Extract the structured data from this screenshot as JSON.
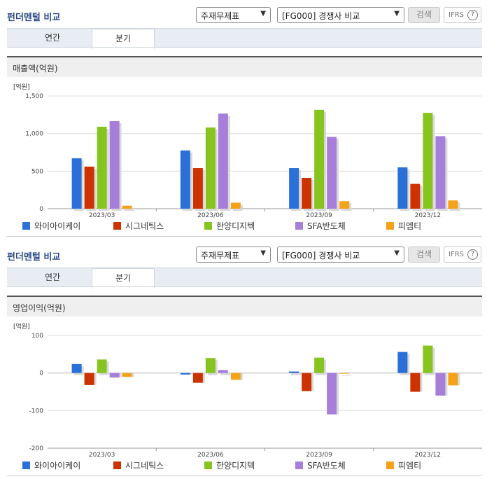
{
  "panels": [
    {
      "header": {
        "title": "펀더멘털 비교",
        "select_statement": "주재무제표",
        "select_compare": "[FG000] 경쟁사 비교",
        "search_label": "검색",
        "ifrs_label": "IFRS",
        "help_glyph": "?"
      },
      "tabs": [
        {
          "label": "연간",
          "active": false
        },
        {
          "label": "분기",
          "active": true
        }
      ],
      "section_title": "매출액(억원)",
      "chart_data": {
        "type": "bar",
        "title": "매출액(억원)",
        "unit_label": "[억원]",
        "categories": [
          "2023/03",
          "2023/06",
          "2023/09",
          "2023/12"
        ],
        "ylim": [
          0,
          1500
        ],
        "yticks": [
          0,
          500,
          1000,
          1500
        ],
        "ytick_labels": [
          "0",
          "500",
          "1,000",
          "1,500"
        ],
        "grid": true,
        "legend_position": "bottom",
        "series": [
          {
            "name": "와이아이케이",
            "color": "#2b6fd8",
            "values": [
              670,
              775,
              540,
              550
            ]
          },
          {
            "name": "시그네틱스",
            "color": "#cc3300",
            "values": [
              560,
              540,
              410,
              330
            ]
          },
          {
            "name": "한양디지텍",
            "color": "#88c420",
            "values": [
              1090,
              1080,
              1315,
              1275
            ]
          },
          {
            "name": "SFA반도체",
            "color": "#a77fdb",
            "values": [
              1165,
              1265,
              955,
              965
            ]
          },
          {
            "name": "피엠티",
            "color": "#f5a21b",
            "values": [
              40,
              80,
              100,
              110
            ]
          }
        ]
      }
    },
    {
      "header": {
        "title": "펀더멘털 비교",
        "select_statement": "주재무제표",
        "select_compare": "[FG000] 경쟁사 비교",
        "search_label": "검색",
        "ifrs_label": "IFRS",
        "help_glyph": "?"
      },
      "tabs": [
        {
          "label": "연간",
          "active": false
        },
        {
          "label": "분기",
          "active": true
        }
      ],
      "section_title": "영업이익(억원)",
      "chart_data": {
        "type": "bar",
        "title": "영업이익(억원)",
        "unit_label": "[억원]",
        "categories": [
          "2023/03",
          "2023/06",
          "2023/09",
          "2023/12"
        ],
        "ylim": [
          -200,
          100
        ],
        "yticks": [
          -200,
          -100,
          0,
          100
        ],
        "ytick_labels": [
          "-200",
          "-100",
          "0",
          "100"
        ],
        "grid": true,
        "legend_position": "bottom",
        "series": [
          {
            "name": "와이아이케이",
            "color": "#2b6fd8",
            "values": [
              24,
              -4,
              4,
              56
            ]
          },
          {
            "name": "시그네틱스",
            "color": "#cc3300",
            "values": [
              -32,
              -26,
              -48,
              -50
            ]
          },
          {
            "name": "한양디지텍",
            "color": "#88c420",
            "values": [
              36,
              40,
              41,
              73
            ]
          },
          {
            "name": "SFA반도체",
            "color": "#a77fdb",
            "values": [
              -12,
              8,
              -110,
              -60
            ]
          },
          {
            "name": "피엠티",
            "color": "#f5a21b",
            "values": [
              -10,
              -18,
              0,
              -33
            ]
          }
        ]
      }
    }
  ]
}
